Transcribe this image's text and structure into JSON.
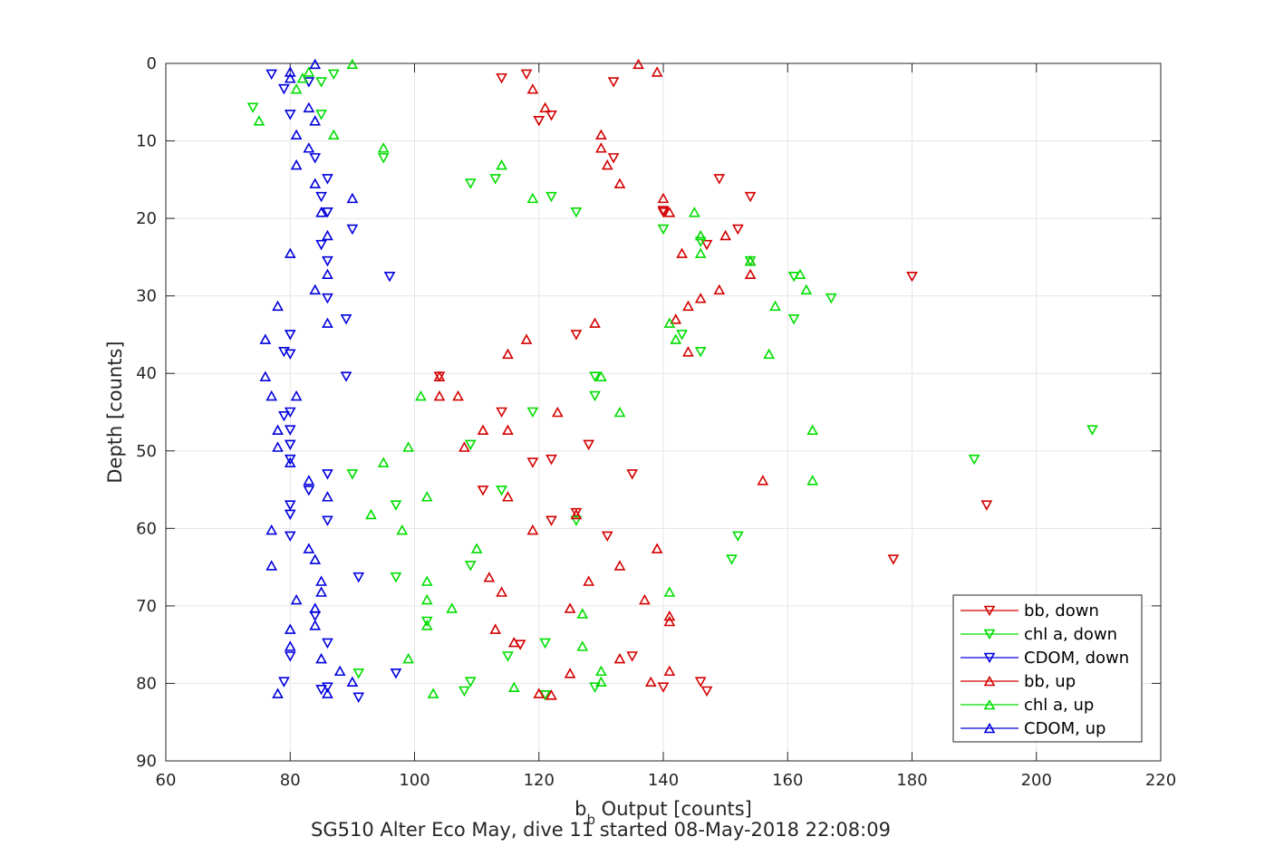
{
  "chart_data": {
    "type": "scatter",
    "title": "",
    "xlabel": "b",
    "xlabel_sub": "b",
    "xlabel_rest": " Output [counts]",
    "ylabel": "Depth [counts]",
    "footer": "SG510 Alter Eco May, dive 11 started 08-May-2018 22:08:09",
    "xlim": [
      60,
      220
    ],
    "ylim": [
      0,
      90
    ],
    "y_reversed": true,
    "grid": true,
    "xticks": [
      "60",
      "80",
      "100",
      "120",
      "140",
      "160",
      "180",
      "200",
      "220"
    ],
    "yticks": [
      "0",
      "10",
      "20",
      "30",
      "40",
      "50",
      "60",
      "70",
      "80",
      "90"
    ],
    "legend_position": "bottom-right",
    "series": [
      {
        "name": "bb, down",
        "color": "#d40000",
        "marker": "triangle-down",
        "points": [
          [
            118,
            1.4
          ],
          [
            114,
            1.9
          ],
          [
            132,
            2.4
          ],
          [
            122,
            6.7
          ],
          [
            120,
            7.4
          ],
          [
            132,
            12.2
          ],
          [
            149,
            14.9
          ],
          [
            154,
            17.2
          ],
          [
            140,
            19.2
          ],
          [
            152,
            21.4
          ],
          [
            147,
            23.4
          ],
          [
            180,
            27.5
          ],
          [
            104,
            40.4
          ],
          [
            126,
            35.0
          ],
          [
            140,
            19.0
          ],
          [
            114,
            45.0
          ],
          [
            128,
            49.2
          ],
          [
            122,
            51.1
          ],
          [
            135,
            53.0
          ],
          [
            111,
            55.1
          ],
          [
            119,
            51.5
          ],
          [
            126,
            58.0
          ],
          [
            122,
            59.0
          ],
          [
            192,
            57.0
          ],
          [
            131,
            61.0
          ],
          [
            177,
            64.0
          ],
          [
            117,
            75.0
          ],
          [
            121,
            81.5
          ],
          [
            135,
            76.5
          ],
          [
            146,
            79.8
          ],
          [
            147,
            81.0
          ],
          [
            140,
            80.5
          ]
        ]
      },
      {
        "name": "chl a, down",
        "color": "#00dd00",
        "marker": "triangle-down",
        "points": [
          [
            87,
            1.4
          ],
          [
            85,
            2.4
          ],
          [
            74,
            5.7
          ],
          [
            85,
            6.6
          ],
          [
            95,
            12.2
          ],
          [
            113,
            14.9
          ],
          [
            109,
            15.5
          ],
          [
            122,
            17.2
          ],
          [
            126,
            19.2
          ],
          [
            140,
            21.4
          ],
          [
            146,
            23.0
          ],
          [
            154,
            25.5
          ],
          [
            161,
            27.5
          ],
          [
            167,
            30.3
          ],
          [
            161,
            33.0
          ],
          [
            143,
            35.0
          ],
          [
            146,
            37.2
          ],
          [
            129,
            40.4
          ],
          [
            129,
            42.9
          ],
          [
            119,
            45.0
          ],
          [
            109,
            49.2
          ],
          [
            209,
            47.3
          ],
          [
            190,
            51.1
          ],
          [
            90,
            53.0
          ],
          [
            114,
            55.1
          ],
          [
            97,
            57.0
          ],
          [
            126,
            59.0
          ],
          [
            152,
            61.0
          ],
          [
            151,
            64.0
          ],
          [
            109,
            64.8
          ],
          [
            97,
            66.3
          ],
          [
            102,
            72.0
          ],
          [
            121,
            74.8
          ],
          [
            115,
            76.5
          ],
          [
            91,
            78.7
          ],
          [
            109,
            79.8
          ],
          [
            108,
            81.0
          ],
          [
            129,
            80.5
          ],
          [
            121,
            81.5
          ]
        ]
      },
      {
        "name": "CDOM, down",
        "color": "#0000dd",
        "marker": "triangle-down",
        "points": [
          [
            77,
            1.4
          ],
          [
            79,
            3.3
          ],
          [
            83,
            2.4
          ],
          [
            80,
            6.6
          ],
          [
            84,
            12.2
          ],
          [
            86,
            14.9
          ],
          [
            85,
            17.2
          ],
          [
            86,
            19.2
          ],
          [
            90,
            21.4
          ],
          [
            85,
            23.4
          ],
          [
            86,
            25.5
          ],
          [
            96,
            27.5
          ],
          [
            86,
            30.3
          ],
          [
            89,
            33.0
          ],
          [
            80,
            35.0
          ],
          [
            79,
            37.2
          ],
          [
            80,
            37.5
          ],
          [
            89,
            40.4
          ],
          [
            80,
            45.0
          ],
          [
            79,
            45.5
          ],
          [
            80,
            47.3
          ],
          [
            80,
            49.2
          ],
          [
            80,
            51.1
          ],
          [
            86,
            53.0
          ],
          [
            83,
            55.1
          ],
          [
            80,
            57.0
          ],
          [
            80,
            58.2
          ],
          [
            86,
            59.0
          ],
          [
            80,
            61.0
          ],
          [
            91,
            66.3
          ],
          [
            84,
            71.3
          ],
          [
            86,
            74.8
          ],
          [
            80,
            76.5
          ],
          [
            97,
            78.7
          ],
          [
            79,
            79.8
          ],
          [
            86,
            80.5
          ],
          [
            85,
            80.8
          ],
          [
            91,
            81.8
          ]
        ]
      },
      {
        "name": "bb, up",
        "color": "#d40000",
        "marker": "triangle-up",
        "points": [
          [
            136,
            0.1
          ],
          [
            139,
            1.1
          ],
          [
            119,
            3.3
          ],
          [
            121,
            5.7
          ],
          [
            130,
            9.2
          ],
          [
            130,
            10.9
          ],
          [
            131,
            13.1
          ],
          [
            133,
            15.5
          ],
          [
            140,
            17.4
          ],
          [
            141,
            19.2
          ],
          [
            150,
            22.2
          ],
          [
            143,
            24.5
          ],
          [
            154,
            25.5
          ],
          [
            154,
            27.2
          ],
          [
            149,
            29.2
          ],
          [
            146,
            30.3
          ],
          [
            144,
            31.3
          ],
          [
            142,
            33.0
          ],
          [
            129,
            33.5
          ],
          [
            118,
            35.6
          ],
          [
            144,
            37.2
          ],
          [
            115,
            37.5
          ],
          [
            104,
            40.4
          ],
          [
            104,
            42.9
          ],
          [
            107,
            42.9
          ],
          [
            123,
            45.0
          ],
          [
            111,
            47.3
          ],
          [
            115,
            47.3
          ],
          [
            108,
            49.5
          ],
          [
            156,
            53.8
          ],
          [
            115,
            55.9
          ],
          [
            126,
            58.2
          ],
          [
            119,
            60.2
          ],
          [
            139,
            62.6
          ],
          [
            133,
            64.8
          ],
          [
            112,
            66.3
          ],
          [
            128,
            66.8
          ],
          [
            114,
            68.2
          ],
          [
            137,
            69.2
          ],
          [
            125,
            70.3
          ],
          [
            141,
            71.3
          ],
          [
            141,
            72.0
          ],
          [
            113,
            73.0
          ],
          [
            116,
            74.7
          ],
          [
            133,
            76.8
          ],
          [
            125,
            78.7
          ],
          [
            141,
            78.4
          ],
          [
            138,
            79.8
          ],
          [
            120,
            81.3
          ],
          [
            122,
            81.5
          ]
        ]
      },
      {
        "name": "chl a, up",
        "color": "#00dd00",
        "marker": "triangle-up",
        "points": [
          [
            90,
            0.1
          ],
          [
            83,
            1.1
          ],
          [
            82,
            1.9
          ],
          [
            81,
            3.3
          ],
          [
            75,
            7.4
          ],
          [
            87,
            9.2
          ],
          [
            95,
            10.9
          ],
          [
            114,
            13.1
          ],
          [
            119,
            17.4
          ],
          [
            145,
            19.2
          ],
          [
            146,
            22.2
          ],
          [
            146,
            24.5
          ],
          [
            154,
            25.5
          ],
          [
            162,
            27.2
          ],
          [
            163,
            29.2
          ],
          [
            158,
            31.3
          ],
          [
            141,
            33.5
          ],
          [
            142,
            35.6
          ],
          [
            157,
            37.5
          ],
          [
            130,
            40.4
          ],
          [
            101,
            42.9
          ],
          [
            133,
            45.0
          ],
          [
            164,
            47.3
          ],
          [
            99,
            49.5
          ],
          [
            95,
            51.5
          ],
          [
            164,
            53.8
          ],
          [
            102,
            55.9
          ],
          [
            93,
            58.2
          ],
          [
            98,
            60.2
          ],
          [
            110,
            62.6
          ],
          [
            102,
            66.8
          ],
          [
            102,
            69.2
          ],
          [
            106,
            70.3
          ],
          [
            127,
            71.0
          ],
          [
            141,
            68.2
          ],
          [
            102,
            72.5
          ],
          [
            127,
            75.2
          ],
          [
            99,
            76.8
          ],
          [
            130,
            78.4
          ],
          [
            130,
            79.8
          ],
          [
            103,
            81.3
          ],
          [
            116,
            80.5
          ]
        ]
      },
      {
        "name": "CDOM, up",
        "color": "#0000dd",
        "marker": "triangle-up",
        "points": [
          [
            84,
            0.1
          ],
          [
            80,
            1.1
          ],
          [
            80,
            1.9
          ],
          [
            83,
            5.7
          ],
          [
            84,
            7.4
          ],
          [
            81,
            9.2
          ],
          [
            83,
            10.9
          ],
          [
            81,
            13.1
          ],
          [
            84,
            15.5
          ],
          [
            90,
            17.4
          ],
          [
            85,
            19.2
          ],
          [
            86,
            22.2
          ],
          [
            80,
            24.5
          ],
          [
            86,
            27.2
          ],
          [
            84,
            29.2
          ],
          [
            78,
            31.3
          ],
          [
            86,
            33.5
          ],
          [
            76,
            35.6
          ],
          [
            76,
            40.4
          ],
          [
            77,
            42.9
          ],
          [
            81,
            42.9
          ],
          [
            78,
            47.3
          ],
          [
            78,
            49.5
          ],
          [
            80,
            51.5
          ],
          [
            83,
            53.8
          ],
          [
            86,
            55.9
          ],
          [
            77,
            60.2
          ],
          [
            83,
            62.6
          ],
          [
            84,
            64.0
          ],
          [
            77,
            64.8
          ],
          [
            85,
            66.8
          ],
          [
            85,
            68.2
          ],
          [
            81,
            69.2
          ],
          [
            84,
            70.3
          ],
          [
            84,
            72.5
          ],
          [
            80,
            73.0
          ],
          [
            80,
            75.2
          ],
          [
            85,
            76.8
          ],
          [
            88,
            78.4
          ],
          [
            90,
            79.8
          ],
          [
            78,
            81.3
          ],
          [
            86,
            81.3
          ]
        ]
      }
    ]
  }
}
